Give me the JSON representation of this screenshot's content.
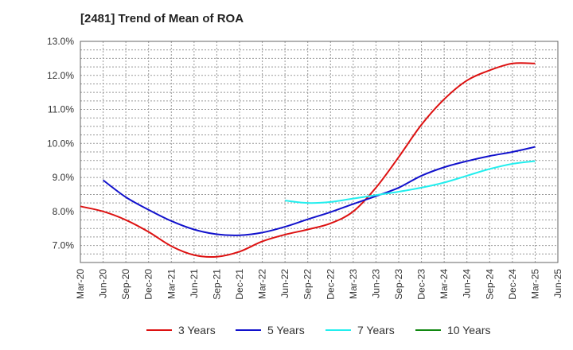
{
  "chart_data": {
    "type": "line",
    "title": "[2481]  Trend of Mean of ROA",
    "xlabel": "",
    "ylabel": "",
    "x_ticks": [
      "Mar-20",
      "Jun-20",
      "Sep-20",
      "Dec-20",
      "Mar-21",
      "Jun-21",
      "Sep-21",
      "Dec-21",
      "Mar-22",
      "Jun-22",
      "Sep-22",
      "Dec-22",
      "Mar-23",
      "Jun-23",
      "Sep-23",
      "Dec-23",
      "Mar-24",
      "Jun-24",
      "Sep-24",
      "Dec-24",
      "Mar-25",
      "Jun-25"
    ],
    "y_ticks": [
      "7.0%",
      "8.0%",
      "9.0%",
      "10.0%",
      "11.0%",
      "12.0%",
      "13.0%"
    ],
    "ylim": [
      6.5,
      13.0
    ],
    "grid": true,
    "legend_position": "bottom",
    "series": [
      {
        "name": "3 Years",
        "color": "#dd1111",
        "points": [
          [
            "Mar-20",
            8.15
          ],
          [
            "Jun-20",
            8.0
          ],
          [
            "Sep-20",
            7.75
          ],
          [
            "Dec-20",
            7.4
          ],
          [
            "Mar-21",
            6.98
          ],
          [
            "Jun-21",
            6.72
          ],
          [
            "Sep-21",
            6.67
          ],
          [
            "Dec-21",
            6.82
          ],
          [
            "Mar-22",
            7.12
          ],
          [
            "Jun-22",
            7.32
          ],
          [
            "Sep-22",
            7.47
          ],
          [
            "Dec-22",
            7.65
          ],
          [
            "Mar-23",
            8.0
          ],
          [
            "Jun-23",
            8.7
          ],
          [
            "Sep-23",
            9.6
          ],
          [
            "Dec-23",
            10.55
          ],
          [
            "Mar-24",
            11.3
          ],
          [
            "Jun-24",
            11.85
          ],
          [
            "Sep-24",
            12.15
          ],
          [
            "Dec-24",
            12.35
          ],
          [
            "Mar-25",
            12.35
          ]
        ]
      },
      {
        "name": "5 Years",
        "color": "#1111cc",
        "points": [
          [
            "Jun-20",
            8.92
          ],
          [
            "Sep-20",
            8.42
          ],
          [
            "Dec-20",
            8.05
          ],
          [
            "Mar-21",
            7.72
          ],
          [
            "Jun-21",
            7.47
          ],
          [
            "Sep-21",
            7.33
          ],
          [
            "Dec-21",
            7.3
          ],
          [
            "Mar-22",
            7.38
          ],
          [
            "Jun-22",
            7.55
          ],
          [
            "Sep-22",
            7.77
          ],
          [
            "Dec-22",
            7.98
          ],
          [
            "Mar-23",
            8.22
          ],
          [
            "Jun-23",
            8.45
          ],
          [
            "Sep-23",
            8.7
          ],
          [
            "Dec-23",
            9.05
          ],
          [
            "Mar-24",
            9.3
          ],
          [
            "Jun-24",
            9.48
          ],
          [
            "Sep-24",
            9.63
          ],
          [
            "Dec-24",
            9.75
          ],
          [
            "Mar-25",
            9.9
          ]
        ]
      },
      {
        "name": "7 Years",
        "color": "#22eeee",
        "points": [
          [
            "Jun-22",
            8.32
          ],
          [
            "Sep-22",
            8.25
          ],
          [
            "Dec-22",
            8.28
          ],
          [
            "Mar-23",
            8.38
          ],
          [
            "Jun-23",
            8.48
          ],
          [
            "Sep-23",
            8.58
          ],
          [
            "Dec-23",
            8.7
          ],
          [
            "Mar-24",
            8.85
          ],
          [
            "Jun-24",
            9.05
          ],
          [
            "Sep-24",
            9.25
          ],
          [
            "Dec-24",
            9.4
          ],
          [
            "Mar-25",
            9.48
          ]
        ]
      },
      {
        "name": "10 Years",
        "color": "#118811",
        "points": []
      }
    ]
  }
}
